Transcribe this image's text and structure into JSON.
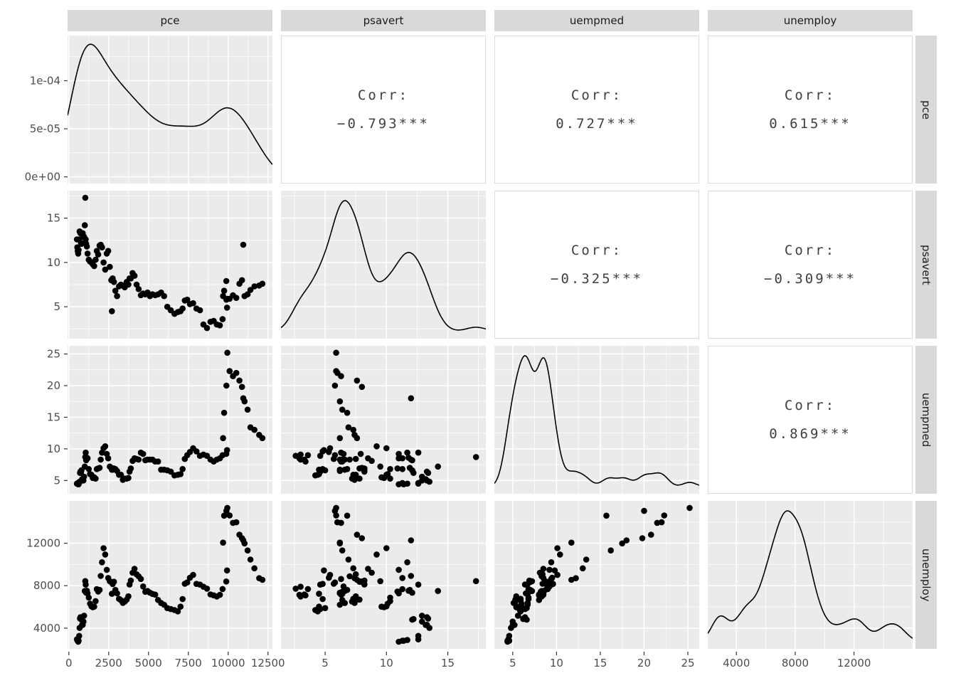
{
  "chart_data": {
    "type": "scatterplot-matrix",
    "title": "",
    "variables": [
      "pce",
      "psavert",
      "uempmed",
      "unemploy"
    ],
    "layout": {
      "diagonal": "density",
      "upper": "correlation-text",
      "lower": "scatter",
      "legend": "none",
      "grid": "on"
    },
    "corr_label": "Corr:",
    "corr": {
      "pce_psavert": "−0.793***",
      "pce_uempmed": "0.727***",
      "pce_unemploy": "0.615***",
      "psavert_uempmed": "−0.325***",
      "psavert_unemploy": "−0.309***",
      "uempmed_unemploy": "0.869***"
    },
    "axes": {
      "pce": {
        "ticks": [
          0,
          2500,
          5000,
          7500,
          10000,
          12500
        ],
        "tick_labels": [
          "0",
          "2500",
          "5000",
          "7500",
          "10000",
          "12500"
        ],
        "range": [
          -80,
          12780
        ],
        "minor": [
          1250,
          3750,
          6250,
          8750,
          11250
        ]
      },
      "psavert": {
        "ticks": [
          5,
          10,
          15
        ],
        "tick_labels": [
          "5",
          "10",
          "15"
        ],
        "range": [
          1.4,
          18.1
        ],
        "minor": [
          2.5,
          7.5,
          12.5,
          17.5
        ]
      },
      "uempmed": {
        "ticks": [
          5,
          10,
          15,
          20,
          25
        ],
        "tick_labels": [
          "5",
          "10",
          "15",
          "20",
          "25"
        ],
        "range": [
          2.9,
          26.3
        ],
        "minor": [
          7.5,
          12.5,
          17.5,
          22.5
        ]
      },
      "unemploy": {
        "ticks": [
          4000,
          8000,
          12000
        ],
        "tick_labels": [
          "4000",
          "8000",
          "12000"
        ],
        "range": [
          2050,
          15990
        ],
        "minor": [
          6000,
          10000,
          14000
        ]
      },
      "density": {
        "ticks": [
          0,
          5e-05,
          0.0001
        ],
        "tick_labels": [
          "0e+00",
          "5e-05",
          "1e-04"
        ],
        "range": [
          -7e-06,
          0.000147
        ],
        "minor": [
          2.5e-05,
          7.5e-05,
          0.000125
        ],
        "peak": 0.000138
      }
    },
    "density_bandwidth": {
      "pce": 900,
      "psavert": 0.8,
      "uempmed": 0.75,
      "unemploy": 550
    },
    "points": [
      [
        507,
        12.6,
        4.5,
        2944
      ],
      [
        532,
        11.7,
        4.5,
        2878
      ],
      [
        558,
        11.3,
        4.6,
        2817
      ],
      [
        584,
        11.0,
        4.4,
        2718
      ],
      [
        612,
        11.4,
        4.4,
        2816
      ],
      [
        646,
        12.6,
        4.6,
        3269
      ],
      [
        674,
        13.5,
        4.8,
        4018
      ],
      [
        702,
        13.4,
        6.2,
        4906
      ],
      [
        730,
        13.3,
        6.4,
        5035
      ],
      [
        760,
        12.2,
        6.2,
        4856
      ],
      [
        790,
        12.1,
        6.6,
        4800
      ],
      [
        830,
        13.2,
        5.2,
        4304
      ],
      [
        870,
        13.3,
        5.0,
        4311
      ],
      [
        915,
        12.9,
        5.0,
        4620
      ],
      [
        955,
        12.9,
        5.6,
        5176
      ],
      [
        1000,
        14.2,
        7.2,
        7501
      ],
      [
        1030,
        17.3,
        8.7,
        8433
      ],
      [
        1060,
        12.6,
        9.4,
        8104
      ],
      [
        1085,
        12.1,
        8.2,
        7336
      ],
      [
        1130,
        11.8,
        8.6,
        7526
      ],
      [
        1175,
        11.0,
        8.5,
        7280
      ],
      [
        1250,
        10.3,
        6.8,
        6873
      ],
      [
        1330,
        10.1,
        6.0,
        6308
      ],
      [
        1415,
        10.0,
        5.9,
        6056
      ],
      [
        1500,
        9.8,
        5.4,
        5976
      ],
      [
        1590,
        9.6,
        5.5,
        6025
      ],
      [
        1680,
        10.3,
        5.3,
        6547
      ],
      [
        1755,
        11.3,
        6.8,
        7675
      ],
      [
        1840,
        10.9,
        6.9,
        7455
      ],
      [
        1930,
        11.9,
        7.0,
        7602
      ],
      [
        2000,
        12.0,
        8.3,
        8918
      ],
      [
        2080,
        11.7,
        9.4,
        10204
      ],
      [
        2180,
        10.0,
        10.1,
        11534
      ],
      [
        2280,
        9.2,
        10.4,
        10935
      ],
      [
        2380,
        11.0,
        9.2,
        9499
      ],
      [
        2470,
        11.3,
        8.5,
        8728
      ],
      [
        2570,
        9.5,
        7.2,
        8423
      ],
      [
        2660,
        8.0,
        7.0,
        8341
      ],
      [
        2700,
        4.5,
        6.7,
        7236
      ],
      [
        2750,
        8.2,
        6.7,
        8146
      ],
      [
        2830,
        7.8,
        6.9,
        8367
      ],
      [
        2920,
        6.8,
        6.8,
        7602
      ],
      [
        3030,
        6.2,
        6.5,
        7277
      ],
      [
        3150,
        7.3,
        5.9,
        6759
      ],
      [
        3270,
        7.5,
        5.9,
        6637
      ],
      [
        3390,
        7.4,
        5.1,
        6375
      ],
      [
        3510,
        7.2,
        5.3,
        6501
      ],
      [
        3630,
        7.8,
        5.3,
        6686
      ],
      [
        3740,
        7.5,
        5.4,
        6994
      ],
      [
        3810,
        8.2,
        6.4,
        8106
      ],
      [
        3890,
        8.2,
        6.9,
        8481
      ],
      [
        4000,
        8.8,
        8.1,
        9221
      ],
      [
        4120,
        8.5,
        8.5,
        9593
      ],
      [
        4250,
        7.5,
        8.4,
        9072
      ],
      [
        4380,
        7.0,
        8.3,
        8885
      ],
      [
        4520,
        6.3,
        9.4,
        8630
      ],
      [
        4660,
        6.5,
        9.2,
        7927
      ],
      [
        4800,
        6.4,
        8.2,
        7423
      ],
      [
        4940,
        6.6,
        8.3,
        7501
      ],
      [
        5090,
        6.2,
        8.3,
        7336
      ],
      [
        5250,
        6.4,
        8.3,
        7227
      ],
      [
        5420,
        6.3,
        8.0,
        7158
      ],
      [
        5600,
        6.4,
        8.0,
        6655
      ],
      [
        5790,
        6.6,
        6.7,
        6368
      ],
      [
        5980,
        6.2,
        6.7,
        6208
      ],
      [
        6180,
        5.0,
        6.6,
        5892
      ],
      [
        6400,
        4.6,
        6.4,
        5796
      ],
      [
        6630,
        4.2,
        5.8,
        5708
      ],
      [
        6840,
        4.4,
        5.9,
        5580
      ],
      [
        7010,
        4.5,
        6.0,
        6023
      ],
      [
        7140,
        4.8,
        6.8,
        6739
      ],
      [
        7280,
        5.7,
        8.4,
        8182
      ],
      [
        7430,
        5.8,
        9.0,
        8304
      ],
      [
        7600,
        5.3,
        9.5,
        8748
      ],
      [
        7800,
        5.4,
        10.1,
        9011
      ],
      [
        8010,
        4.8,
        9.6,
        8170
      ],
      [
        8230,
        4.6,
        8.9,
        8105
      ],
      [
        8450,
        3.0,
        9.1,
        7901
      ],
      [
        8670,
        2.6,
        8.9,
        7717
      ],
      [
        8890,
        3.3,
        8.3,
        7175
      ],
      [
        9090,
        3.4,
        8.0,
        7091
      ],
      [
        9290,
        3.0,
        8.3,
        6983
      ],
      [
        9480,
        2.9,
        8.5,
        7137
      ],
      [
        9650,
        3.6,
        9.0,
        7685
      ],
      [
        9880,
        7.9,
        9.2,
        8395
      ],
      [
        9930,
        4.9,
        9.8,
        9438
      ],
      [
        9680,
        6.2,
        11.7,
        12058
      ],
      [
        9750,
        6.8,
        15.7,
        14599
      ],
      [
        9890,
        5.8,
        20.0,
        15046
      ],
      [
        9950,
        5.9,
        25.2,
        15325
      ],
      [
        10090,
        5.9,
        22.3,
        14613
      ],
      [
        10300,
        6.3,
        21.5,
        13919
      ],
      [
        10510,
        6.0,
        22.0,
        13971
      ],
      [
        10710,
        7.6,
        20.8,
        12797
      ],
      [
        10870,
        8.0,
        19.8,
        12471
      ],
      [
        10950,
        12.0,
        18.0,
        12272
      ],
      [
        11030,
        6.2,
        17.5,
        11985
      ],
      [
        11220,
        6.4,
        16.2,
        11316
      ],
      [
        11400,
        6.9,
        13.4,
        10459
      ],
      [
        11650,
        7.3,
        13.0,
        9637
      ],
      [
        11950,
        7.4,
        12.2,
        8705
      ],
      [
        12150,
        7.6,
        11.7,
        8549
      ]
    ],
    "colors": {
      "panel_bg": "#EBEBEB",
      "strip_bg": "#D9D9D9",
      "grid": "#FFFFFF",
      "points": "#000000",
      "axis_text": "#4D4D4D",
      "tick": "#333333",
      "corr_text": "#404040",
      "corr_border": "#DBDBDB",
      "strip_text": "#1A1A1A"
    }
  }
}
